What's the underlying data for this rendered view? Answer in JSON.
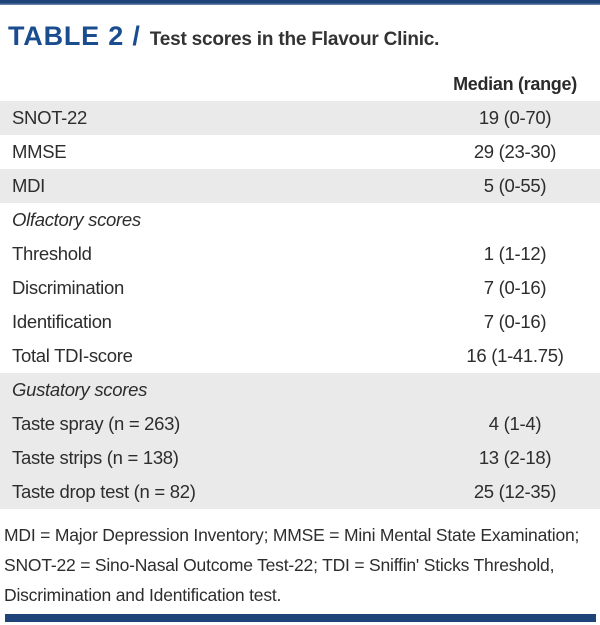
{
  "title": {
    "kicker": "TABLE 2 /",
    "text": "Test scores in the Flavour Clinic."
  },
  "table": {
    "value_header": "Median (range)",
    "rows": [
      {
        "label": "SNOT-22",
        "value": "19 (0-70)"
      },
      {
        "label": "MMSE",
        "value": "29 (23-30)"
      },
      {
        "label": "MDI",
        "value": "5 (0-55)"
      },
      {
        "label": "Olfactory scores",
        "value": ""
      },
      {
        "label": "Threshold",
        "value": "1 (1-12)"
      },
      {
        "label": "Discrimination",
        "value": "7 (0-16)"
      },
      {
        "label": "Identification",
        "value": "7 (0-16)"
      },
      {
        "label": "Total TDI-score",
        "value": "16 (1-41.75)"
      },
      {
        "label": "Gustatory scores",
        "value": ""
      },
      {
        "label": "Taste spray (n = 263)",
        "value": "4 (1-4)"
      },
      {
        "label": "Taste strips (n = 138)",
        "value": "13 (2-18)"
      },
      {
        "label": "Taste drop test (n = 82)",
        "value": "25 (12-35)"
      }
    ]
  },
  "footnote": {
    "lines": [
      "MDI = Major Depression Inventory; MMSE = Mini Mental State Examination;",
      "SNOT-22 = Sino-Nasal Outcome Test-22; TDI = Sniffin' Sticks Threshold,",
      "Discrimination and Identification test."
    ]
  },
  "colors": {
    "accent_blue": "#1a4d8e",
    "bar_blue": "#1e4379",
    "row_shade": "#eaeaea",
    "text": "#2d2d2d"
  }
}
